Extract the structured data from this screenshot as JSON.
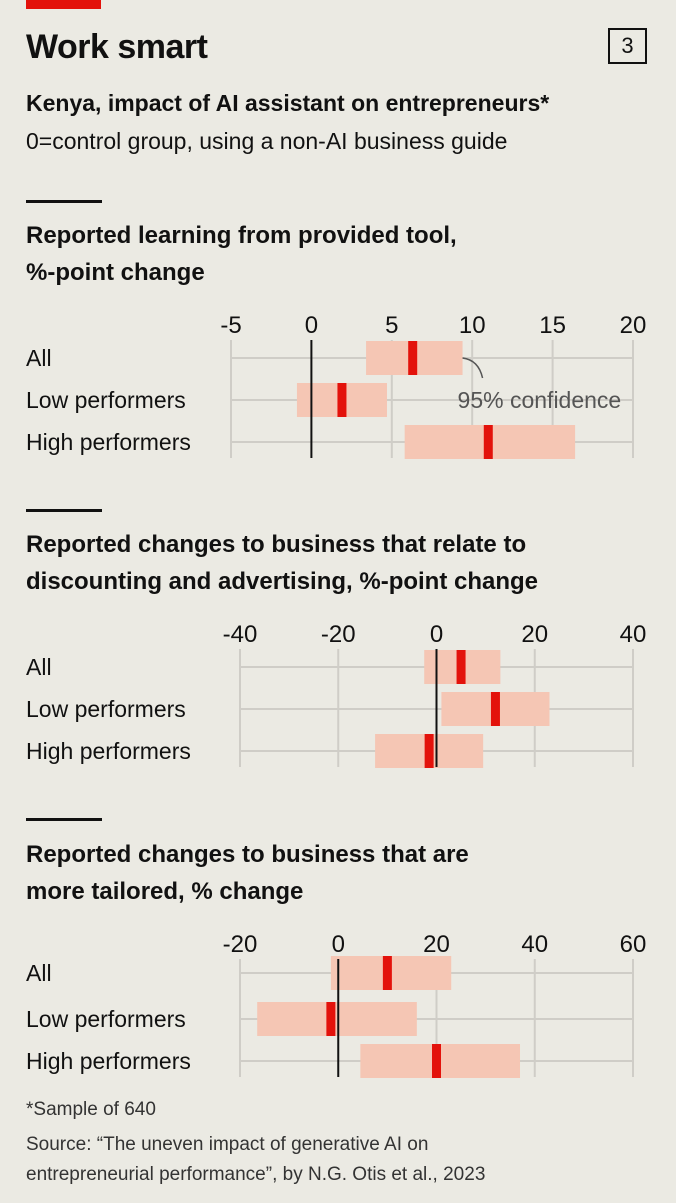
{
  "header": {
    "title": "Work smart",
    "badge": "3",
    "subtitle": "Kenya, impact of AI assistant on entrepreneurs*",
    "description": "0=control group, using a non-AI business guide"
  },
  "colors": {
    "accent": "#e3120b",
    "ci_band": "#f5c6b4",
    "grid": "#cfcdc7",
    "zero": "#111111",
    "background": "#ebeae3"
  },
  "chart_data": [
    {
      "type": "range",
      "title_lines": [
        "Reported learning from provided tool,",
        "%-point change"
      ],
      "xlim": [
        -5,
        20
      ],
      "ticks": [
        -5,
        0,
        5,
        10,
        15,
        20
      ],
      "tick_labels": [
        "-5",
        "0",
        "5",
        "10",
        "15",
        "20"
      ],
      "categories": [
        "All",
        "Low performers",
        "High performers"
      ],
      "estimates": [
        6.3,
        1.9,
        11.0
      ],
      "ci_low": [
        3.4,
        -0.9,
        5.8
      ],
      "ci_high": [
        9.4,
        4.7,
        16.4
      ],
      "annotation": "95% confidence"
    },
    {
      "type": "range",
      "title_lines": [
        "Reported changes to business that relate to",
        "discounting and advertising, %-point change"
      ],
      "xlim": [
        -40,
        40
      ],
      "ticks": [
        -40,
        -20,
        0,
        20,
        40
      ],
      "tick_labels": [
        "-40",
        "-20",
        "0",
        "20",
        "40"
      ],
      "categories": [
        "All",
        "Low performers",
        "High performers"
      ],
      "estimates": [
        5.0,
        12.0,
        -1.5
      ],
      "ci_low": [
        -2.5,
        1.0,
        -12.5
      ],
      "ci_high": [
        13.0,
        23.0,
        9.5
      ]
    },
    {
      "type": "range",
      "title_lines": [
        "Reported changes to business that are",
        "more tailored, % change"
      ],
      "xlim": [
        -20,
        60
      ],
      "ticks": [
        -20,
        0,
        20,
        40,
        60
      ],
      "tick_labels": [
        "-20",
        "0",
        "20",
        "40",
        "60"
      ],
      "categories": [
        "All",
        "Low performers",
        "High performers"
      ],
      "estimates": [
        10.0,
        -1.5,
        20.0
      ],
      "ci_low": [
        -1.5,
        -16.5,
        4.5
      ],
      "ci_high": [
        23.0,
        16.0,
        37.0
      ]
    }
  ],
  "footer": {
    "footnote": "*Sample of 640",
    "source_line1": "Source: “The uneven impact of generative AI on",
    "source_line2": "entrepreneurial performance”, by N.G. Otis et al., 2023"
  }
}
